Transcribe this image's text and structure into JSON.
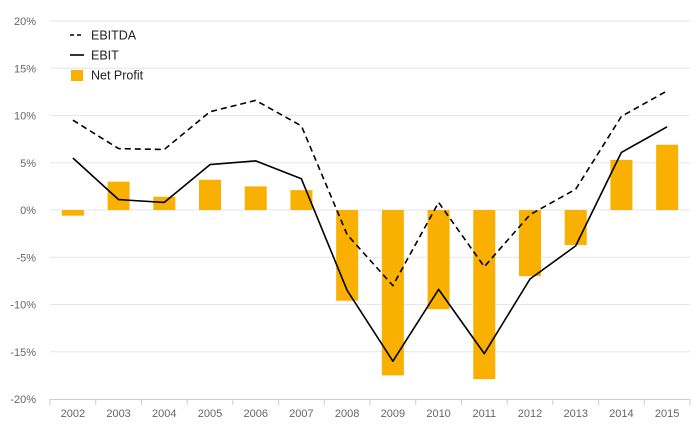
{
  "chart_data": {
    "type": "bar",
    "categories": [
      "2002",
      "2003",
      "2004",
      "2005",
      "2006",
      "2007",
      "2008",
      "2009",
      "2010",
      "2011",
      "2012",
      "2013",
      "2014",
      "2015"
    ],
    "series": [
      {
        "name": "EBITDA",
        "type": "line",
        "style": "dashed",
        "color": "#000000",
        "values": [
          9.5,
          6.5,
          6.4,
          10.4,
          11.6,
          8.9,
          -2.6,
          -8.0,
          0.8,
          -6.0,
          -0.5,
          2.2,
          9.9,
          12.6
        ]
      },
      {
        "name": "EBIT",
        "type": "line",
        "style": "solid",
        "color": "#000000",
        "values": [
          5.5,
          1.1,
          0.8,
          4.8,
          5.2,
          3.3,
          -8.5,
          -16.0,
          -8.4,
          -15.2,
          -7.3,
          -3.8,
          6.1,
          8.8
        ]
      },
      {
        "name": "Net Profit",
        "type": "bar",
        "color": "#F9B000",
        "values": [
          -0.6,
          3.0,
          1.4,
          3.2,
          2.5,
          2.1,
          -9.6,
          -17.5,
          -10.5,
          -17.9,
          -7.0,
          -3.7,
          5.3,
          6.9
        ]
      }
    ],
    "ylim": [
      -20,
      20
    ],
    "yticks": [
      20,
      15,
      10,
      5,
      0,
      -5,
      -10,
      -15,
      -20
    ],
    "ytick_labels": [
      "20%",
      "15%",
      "10%",
      "5%",
      "0%",
      "-5%",
      "-10%",
      "-15%",
      "-20%"
    ],
    "grid": true,
    "legend": "top-left",
    "title": "",
    "xlabel": "",
    "ylabel": "",
    "colors": {
      "grid": "#e6e6e6",
      "axis": "#cccccc"
    }
  }
}
